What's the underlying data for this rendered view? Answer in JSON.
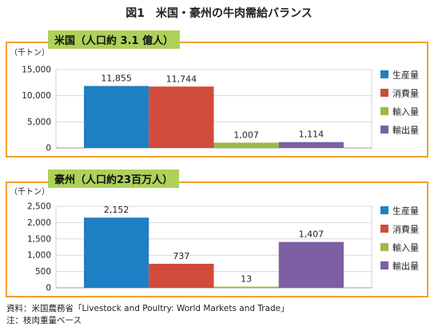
{
  "figure_title": "図1　米国・豪州の牛肉需給バランス",
  "legend": [
    {
      "label": "生産量",
      "color": "#1f7fc4"
    },
    {
      "label": "消費量",
      "color": "#d14b3a"
    },
    {
      "label": "輸入量",
      "color": "#9bbb45"
    },
    {
      "label": "輸出量",
      "color": "#7d5fa3"
    }
  ],
  "chart_data": [
    {
      "type": "bar",
      "title": "米国（人口約 3.1 億人）",
      "ylabel": "（千トン）",
      "categories": [
        "生産量",
        "消費量",
        "輸入量",
        "輸出量"
      ],
      "values": [
        11855,
        11744,
        1007,
        1114
      ],
      "value_labels": [
        "11,855",
        "11,744",
        "1,007",
        "1,114"
      ],
      "ylim": [
        0,
        15000
      ],
      "yticks": [
        0,
        5000,
        10000,
        15000
      ],
      "ytick_labels": [
        "0",
        "5,000",
        "10,000",
        "15,000"
      ],
      "grid": true,
      "legend_position": "right"
    },
    {
      "type": "bar",
      "title": "豪州（人口約23百万人）",
      "ylabel": "（千トン）",
      "categories": [
        "生産量",
        "消費量",
        "輸入量",
        "輸出量"
      ],
      "values": [
        2152,
        737,
        13,
        1407
      ],
      "value_labels": [
        "2,152",
        "737",
        "13",
        "1,407"
      ],
      "ylim": [
        0,
        2500
      ],
      "yticks": [
        0,
        500,
        1000,
        1500,
        2000,
        2500
      ],
      "ytick_labels": [
        "0",
        "500",
        "1,000",
        "1,500",
        "2,000",
        "2,500"
      ],
      "grid": true,
      "legend_position": "right"
    }
  ],
  "footnotes": [
    "資料：米国農務省「Livestock and Poultry: World Markets and Trade」",
    "注：枝肉重量ベース"
  ]
}
